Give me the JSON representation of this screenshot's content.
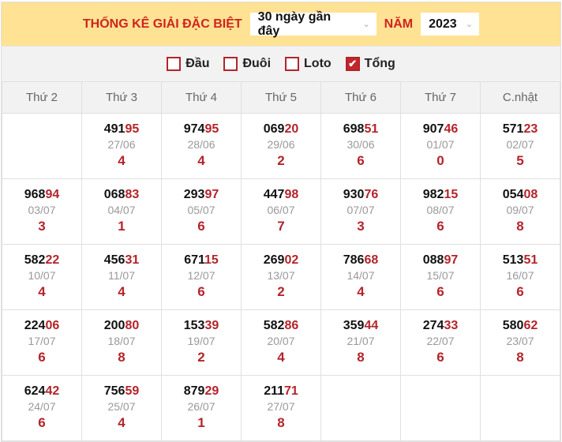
{
  "header": {
    "title": "THỐNG KÊ GIẢI ĐẶC BIỆT",
    "range_select": "30 ngày gần đây",
    "year_label": "NĂM",
    "year_select": "2023"
  },
  "filters": [
    {
      "label": "Đầu",
      "checked": false
    },
    {
      "label": "Đuôi",
      "checked": false
    },
    {
      "label": "Loto",
      "checked": false
    },
    {
      "label": "Tổng",
      "checked": true
    }
  ],
  "columns": [
    "Thứ 2",
    "Thứ 3",
    "Thứ 4",
    "Thứ 5",
    "Thứ 6",
    "Thứ 7",
    "C.nhật"
  ],
  "colors": {
    "accent": "#b3242b",
    "header_bg": "#ffe294"
  },
  "rows": [
    [
      null,
      {
        "number": "49195",
        "date": "27/06",
        "sum": "4"
      },
      {
        "number": "97495",
        "date": "28/06",
        "sum": "4"
      },
      {
        "number": "06920",
        "date": "29/06",
        "sum": "2"
      },
      {
        "number": "69851",
        "date": "30/06",
        "sum": "6"
      },
      {
        "number": "90746",
        "date": "01/07",
        "sum": "0"
      },
      {
        "number": "57123",
        "date": "02/07",
        "sum": "5"
      }
    ],
    [
      {
        "number": "96894",
        "date": "03/07",
        "sum": "3"
      },
      {
        "number": "06883",
        "date": "04/07",
        "sum": "1"
      },
      {
        "number": "29397",
        "date": "05/07",
        "sum": "6"
      },
      {
        "number": "44798",
        "date": "06/07",
        "sum": "7"
      },
      {
        "number": "93076",
        "date": "07/07",
        "sum": "3"
      },
      {
        "number": "98215",
        "date": "08/07",
        "sum": "6"
      },
      {
        "number": "05408",
        "date": "09/07",
        "sum": "8"
      }
    ],
    [
      {
        "number": "58222",
        "date": "10/07",
        "sum": "4"
      },
      {
        "number": "45631",
        "date": "11/07",
        "sum": "4"
      },
      {
        "number": "67115",
        "date": "12/07",
        "sum": "6"
      },
      {
        "number": "26902",
        "date": "13/07",
        "sum": "2"
      },
      {
        "number": "78668",
        "date": "14/07",
        "sum": "4"
      },
      {
        "number": "08897",
        "date": "15/07",
        "sum": "6"
      },
      {
        "number": "51351",
        "date": "16/07",
        "sum": "6"
      }
    ],
    [
      {
        "number": "22406",
        "date": "17/07",
        "sum": "6"
      },
      {
        "number": "20080",
        "date": "18/07",
        "sum": "8"
      },
      {
        "number": "15339",
        "date": "19/07",
        "sum": "2"
      },
      {
        "number": "58286",
        "date": "20/07",
        "sum": "4"
      },
      {
        "number": "35944",
        "date": "21/07",
        "sum": "8"
      },
      {
        "number": "27433",
        "date": "22/07",
        "sum": "6"
      },
      {
        "number": "58062",
        "date": "23/07",
        "sum": "8"
      }
    ],
    [
      {
        "number": "62442",
        "date": "24/07",
        "sum": "6"
      },
      {
        "number": "75659",
        "date": "25/07",
        "sum": "4"
      },
      {
        "number": "87929",
        "date": "26/07",
        "sum": "1"
      },
      {
        "number": "21171",
        "date": "27/07",
        "sum": "8"
      },
      null,
      null,
      null
    ]
  ]
}
